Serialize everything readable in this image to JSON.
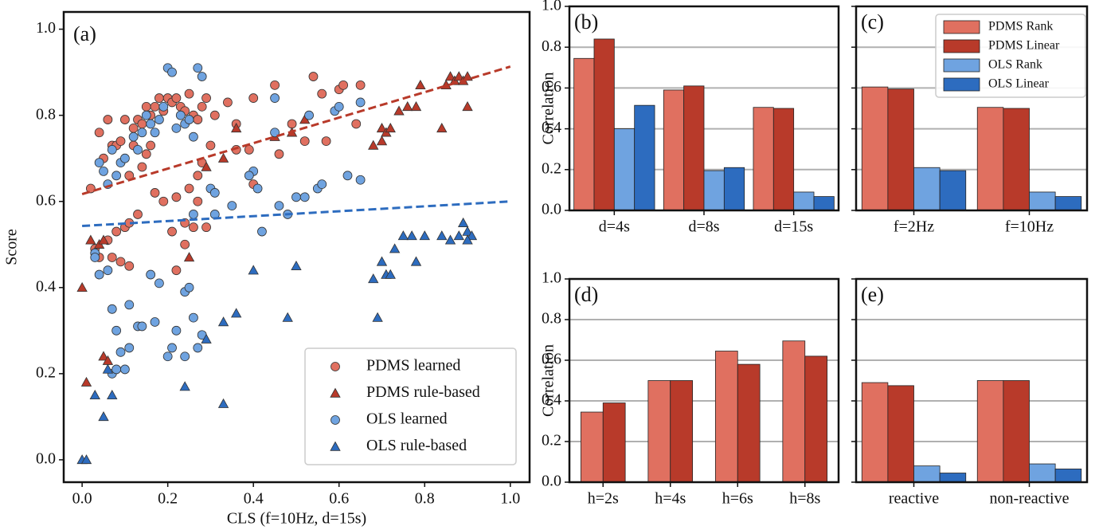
{
  "chart_data": [
    {
      "type": "scatter",
      "title": "(a)",
      "xlabel": "CLS (f=10Hz, d=15s)",
      "ylabel": "Score",
      "xlim": [
        -0.043,
        1.045
      ],
      "ylim": [
        -0.052,
        1.04
      ],
      "xticks": [
        {
          "value": 0,
          "label": "0.0"
        },
        {
          "value": 0.2,
          "label": "0.2"
        },
        {
          "value": 0.4,
          "label": "0.4"
        },
        {
          "value": 0.6,
          "label": "0.6"
        },
        {
          "value": 0.8,
          "label": "0.8"
        },
        {
          "value": 1,
          "label": "1.0"
        }
      ],
      "yticks": [
        {
          "value": 0,
          "label": "0.0"
        },
        {
          "value": 0.2,
          "label": "0.2"
        },
        {
          "value": 0.4,
          "label": "0.4"
        },
        {
          "value": 0.6,
          "label": "0.6"
        },
        {
          "value": 0.8,
          "label": "0.8"
        },
        {
          "value": 1,
          "label": "1.0"
        }
      ],
      "legend": "lower right",
      "series": [
        {
          "name": "PDMS learned",
          "color": "#e07060",
          "marker": "circle",
          "x": [
            0.02,
            0.04,
            0.06,
            0.05,
            0.07,
            0.08,
            0.09,
            0.1,
            0.11,
            0.12,
            0.13,
            0.14,
            0.15,
            0.16,
            0.17,
            0.18,
            0.19,
            0.2,
            0.21,
            0.22,
            0.23,
            0.24,
            0.25,
            0.26,
            0.27,
            0.28,
            0.29,
            0.3,
            0.31,
            0.34,
            0.36,
            0.4,
            0.45,
            0.46,
            0.49,
            0.52,
            0.54,
            0.56,
            0.57,
            0.6,
            0.61,
            0.65,
            0.64,
            0.4,
            0.39,
            0.28,
            0.27,
            0.25,
            0.24,
            0.22,
            0.19,
            0.21,
            0.13,
            0.1,
            0.11,
            0.08,
            0.07,
            0.06,
            0.09,
            0.11,
            0.03,
            0.04,
            0.22,
            0.24,
            0.26,
            0.29,
            0.27,
            0.14,
            0.15,
            0.16,
            0.17,
            0.12,
            0.36
          ],
          "y": [
            0.63,
            0.76,
            0.79,
            0.7,
            0.73,
            0.73,
            0.74,
            0.79,
            0.66,
            0.77,
            0.79,
            0.78,
            0.82,
            0.8,
            0.82,
            0.84,
            0.81,
            0.84,
            0.83,
            0.84,
            0.82,
            0.81,
            0.85,
            0.8,
            0.79,
            0.82,
            0.84,
            0.73,
            0.8,
            0.83,
            0.78,
            0.84,
            0.87,
            0.71,
            0.78,
            0.74,
            0.89,
            0.85,
            0.74,
            0.86,
            0.87,
            0.87,
            0.78,
            0.64,
            0.72,
            0.69,
            0.66,
            0.63,
            0.55,
            0.61,
            0.6,
            0.53,
            0.57,
            0.54,
            0.55,
            0.53,
            0.47,
            0.51,
            0.46,
            0.45,
            0.49,
            0.47,
            0.44,
            0.5,
            0.54,
            0.54,
            0.6,
            0.68,
            0.71,
            0.73,
            0.62,
            0.73,
            0.72
          ]
        },
        {
          "name": "PDMS rule-based",
          "color": "#b83a2a",
          "marker": "triangle",
          "x": [
            0.0,
            0.01,
            0.02,
            0.04,
            0.05,
            0.05,
            0.06,
            0.25,
            0.29,
            0.33,
            0.36,
            0.45,
            0.49,
            0.52,
            0.68,
            0.7,
            0.71,
            0.72,
            0.74,
            0.76,
            0.78,
            0.79,
            0.84,
            0.85,
            0.86,
            0.87,
            0.88,
            0.89,
            0.9,
            0.9,
            0.7
          ],
          "y": [
            0.4,
            0.18,
            0.51,
            0.5,
            0.51,
            0.24,
            0.23,
            0.47,
            0.68,
            0.7,
            0.77,
            0.75,
            0.76,
            0.79,
            0.73,
            0.77,
            0.76,
            0.77,
            0.81,
            0.82,
            0.82,
            0.87,
            0.77,
            0.87,
            0.89,
            0.88,
            0.89,
            0.88,
            0.82,
            0.89,
            0.74
          ]
        },
        {
          "name": "OLS learned",
          "color": "#6fa3e0",
          "marker": "circle",
          "x": [
            0.04,
            0.05,
            0.06,
            0.07,
            0.08,
            0.09,
            0.1,
            0.12,
            0.13,
            0.14,
            0.15,
            0.16,
            0.17,
            0.18,
            0.19,
            0.2,
            0.21,
            0.22,
            0.23,
            0.24,
            0.25,
            0.26,
            0.27,
            0.28,
            0.3,
            0.31,
            0.35,
            0.4,
            0.39,
            0.41,
            0.42,
            0.45,
            0.46,
            0.48,
            0.5,
            0.52,
            0.55,
            0.56,
            0.59,
            0.6,
            0.62,
            0.65,
            0.65,
            0.53,
            0.45,
            0.03,
            0.03,
            0.04,
            0.06,
            0.07,
            0.08,
            0.09,
            0.1,
            0.11,
            0.07,
            0.13,
            0.14,
            0.17,
            0.18,
            0.2,
            0.21,
            0.22,
            0.24,
            0.24,
            0.25,
            0.26,
            0.28,
            0.31,
            0.26,
            0.11,
            0.16,
            0.08,
            0.27
          ],
          "y": [
            0.69,
            0.67,
            0.64,
            0.72,
            0.66,
            0.69,
            0.7,
            0.75,
            0.72,
            0.76,
            0.8,
            0.78,
            0.76,
            0.79,
            0.82,
            0.91,
            0.9,
            0.77,
            0.8,
            0.78,
            0.79,
            0.75,
            0.91,
            0.89,
            0.63,
            0.62,
            0.59,
            0.67,
            0.66,
            0.63,
            0.53,
            0.76,
            0.59,
            0.57,
            0.61,
            0.61,
            0.63,
            0.64,
            0.81,
            0.82,
            0.66,
            0.65,
            0.83,
            0.8,
            0.84,
            0.48,
            0.47,
            0.43,
            0.44,
            0.35,
            0.3,
            0.25,
            0.21,
            0.26,
            0.2,
            0.31,
            0.31,
            0.32,
            0.41,
            0.24,
            0.26,
            0.3,
            0.24,
            0.39,
            0.4,
            0.33,
            0.29,
            0.57,
            0.57,
            0.36,
            0.43,
            0.21,
            0.26
          ]
        },
        {
          "name": "OLS rule-based",
          "color": "#2d6cbf",
          "marker": "triangle",
          "x": [
            0.0,
            0.01,
            0.03,
            0.05,
            0.06,
            0.07,
            0.24,
            0.29,
            0.33,
            0.33,
            0.36,
            0.4,
            0.48,
            0.5,
            0.68,
            0.69,
            0.7,
            0.71,
            0.72,
            0.73,
            0.75,
            0.77,
            0.78,
            0.8,
            0.84,
            0.86,
            0.88,
            0.89,
            0.9,
            0.91,
            0.9
          ],
          "y": [
            0.0,
            0.0,
            0.15,
            0.1,
            0.21,
            0.15,
            0.17,
            0.28,
            0.13,
            0.32,
            0.34,
            0.44,
            0.33,
            0.45,
            0.42,
            0.33,
            0.46,
            0.43,
            0.43,
            0.49,
            0.52,
            0.52,
            0.46,
            0.52,
            0.52,
            0.51,
            0.52,
            0.55,
            0.53,
            0.52,
            0.51
          ]
        }
      ],
      "trend_lines": [
        {
          "color": "#b83a2a",
          "x": [
            0,
            1
          ],
          "y": [
            0.617,
            0.913
          ]
        },
        {
          "color": "#2d6cbf",
          "x": [
            0,
            1
          ],
          "y": [
            0.543,
            0.6
          ]
        }
      ]
    },
    {
      "type": "bar",
      "title": "(b)",
      "ylabel": "Correlation",
      "ylim": [
        0,
        1
      ],
      "grid": true,
      "yticks": [
        {
          "value": 0,
          "label": "0.0"
        },
        {
          "value": 0.2,
          "label": "0.2"
        },
        {
          "value": 0.4,
          "label": "0.4"
        },
        {
          "value": 0.6,
          "label": "0.6"
        },
        {
          "value": 0.8,
          "label": "0.8"
        },
        {
          "value": 1,
          "label": "1.0"
        }
      ],
      "categories": [
        "d=4s",
        "d=8s",
        "d=15s"
      ],
      "series": [
        {
          "color": "#e07060",
          "values": [
            0.745,
            0.59,
            0.505
          ]
        },
        {
          "color": "#b83a2a",
          "values": [
            0.84,
            0.61,
            0.5
          ]
        },
        {
          "color": "#6fa3e0",
          "values": [
            0.4,
            0.195,
            0.09
          ]
        },
        {
          "color": "#2d6cbf",
          "values": [
            0.515,
            0.21,
            0.068
          ]
        }
      ]
    },
    {
      "type": "bar",
      "title": "(c)",
      "ylim": [
        0,
        1
      ],
      "grid": true,
      "legend": "upper right",
      "categories": [
        "f=2Hz",
        "f=10Hz"
      ],
      "series": [
        {
          "name": "PDMS Rank",
          "color": "#e07060",
          "values": [
            0.605,
            0.505
          ]
        },
        {
          "name": "PDMS Linear",
          "color": "#b83a2a",
          "values": [
            0.595,
            0.5
          ]
        },
        {
          "name": "OLS Rank",
          "color": "#6fa3e0",
          "values": [
            0.21,
            0.09
          ]
        },
        {
          "name": "OLS Linear",
          "color": "#2d6cbf",
          "values": [
            0.195,
            0.068
          ]
        }
      ]
    },
    {
      "type": "bar",
      "title": "(d)",
      "ylabel": "Correlation",
      "ylim": [
        0,
        1
      ],
      "grid": true,
      "yticks": [
        {
          "value": 0,
          "label": "0.0"
        },
        {
          "value": 0.2,
          "label": "0.2"
        },
        {
          "value": 0.4,
          "label": "0.4"
        },
        {
          "value": 0.6,
          "label": "0.6"
        },
        {
          "value": 0.8,
          "label": "0.8"
        },
        {
          "value": 1,
          "label": "1.0"
        }
      ],
      "categories": [
        "h=2s",
        "h=4s",
        "h=6s",
        "h=8s"
      ],
      "series": [
        {
          "color": "#e07060",
          "values": [
            0.345,
            0.5,
            0.645,
            0.695
          ]
        },
        {
          "color": "#b83a2a",
          "values": [
            0.39,
            0.5,
            0.58,
            0.62
          ]
        }
      ]
    },
    {
      "type": "bar",
      "title": "(e)",
      "ylim": [
        0,
        1
      ],
      "grid": true,
      "categories": [
        "reactive",
        "non-reactive"
      ],
      "series": [
        {
          "color": "#e07060",
          "values": [
            0.49,
            0.5
          ]
        },
        {
          "color": "#b83a2a",
          "values": [
            0.475,
            0.5
          ]
        },
        {
          "color": "#6fa3e0",
          "values": [
            0.08,
            0.09
          ]
        },
        {
          "color": "#2d6cbf",
          "values": [
            0.045,
            0.065
          ]
        }
      ]
    }
  ]
}
